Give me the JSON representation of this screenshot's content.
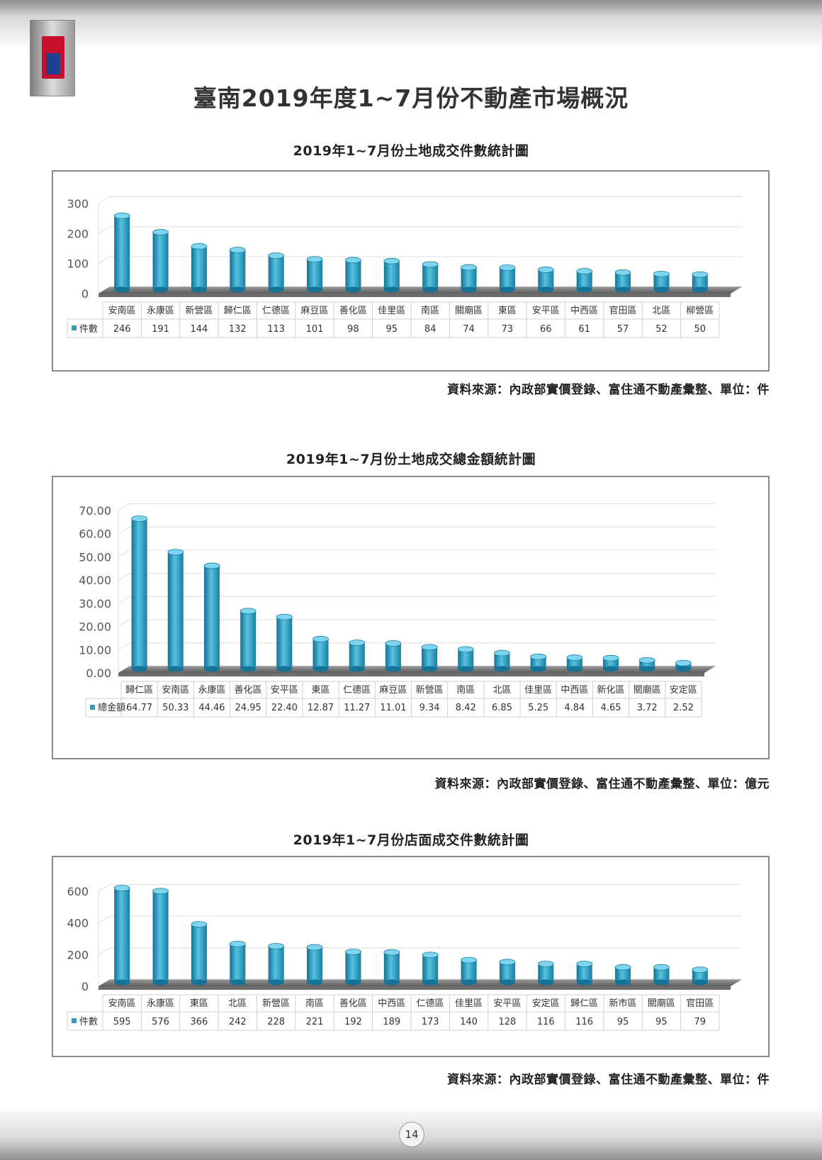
{
  "page": {
    "title": "臺南2019年度1~7月份不動產市場概況",
    "page_number": "14"
  },
  "charts": [
    {
      "title": "2019年1~7月份土地成交件數統計圖",
      "source": "資料來源：內政部實價登錄、富住通不動產彙整、單位：件"
    },
    {
      "title": "2019年1~7月份土地成交總金額統計圖",
      "source": "資料來源：內政部實價登錄、富住通不動產彙整、單位：億元"
    },
    {
      "title": "2019年1~7月份店面成交件數統計圖",
      "source": "資料來源：內政部實價登錄、富住通不動產彙整、單位：件"
    }
  ],
  "chart_data": [
    {
      "type": "bar",
      "title": "2019年1~7月份土地成交件數統計圖",
      "categories": [
        "安南區",
        "永康區",
        "新營區",
        "歸仁區",
        "仁德區",
        "麻豆區",
        "善化區",
        "佳里區",
        "南區",
        "關廟區",
        "東區",
        "安平區",
        "中西區",
        "官田區",
        "北區",
        "柳營區"
      ],
      "series": [
        {
          "name": "件數",
          "values": [
            246,
            191,
            144,
            132,
            113,
            101,
            98,
            95,
            84,
            74,
            73,
            66,
            61,
            57,
            52,
            50
          ]
        }
      ],
      "value_labels": [
        "246",
        "191",
        "144",
        "132",
        "113",
        "101",
        "98",
        "95",
        "84",
        "74",
        "73",
        "66",
        "61",
        "57",
        "52",
        "50"
      ],
      "yticks": [
        "0",
        "100",
        "200",
        "300"
      ],
      "ylim": [
        0,
        300
      ],
      "grid": true,
      "legend": "data-table",
      "bar_color": "#2f9cbf"
    },
    {
      "type": "bar",
      "title": "2019年1~7月份土地成交總金額統計圖",
      "categories": [
        "歸仁區",
        "安南區",
        "永康區",
        "善化區",
        "安平區",
        "東區",
        "仁德區",
        "麻豆區",
        "新營區",
        "南區",
        "北區",
        "佳里區",
        "中西區",
        "新化區",
        "關廟區",
        "安定區"
      ],
      "series": [
        {
          "name": "總金額",
          "values": [
            64.77,
            50.33,
            44.46,
            24.95,
            22.4,
            12.87,
            11.27,
            11.01,
            9.34,
            8.42,
            6.85,
            5.25,
            4.84,
            4.65,
            3.72,
            2.52
          ]
        }
      ],
      "value_labels": [
        "64.77",
        "50.33",
        "44.46",
        "24.95",
        "22.40",
        "12.87",
        "11.27",
        "11.01",
        "9.34",
        "8.42",
        "6.85",
        "5.25",
        "4.84",
        "4.65",
        "3.72",
        "2.52"
      ],
      "yticks": [
        "0.00",
        "10.00",
        "20.00",
        "30.00",
        "40.00",
        "50.00",
        "60.00",
        "70.00"
      ],
      "ylim": [
        0,
        70
      ],
      "grid": true,
      "legend": "data-table",
      "bar_color": "#2f9cbf"
    },
    {
      "type": "bar",
      "title": "2019年1~7月份店面成交件數統計圖",
      "categories": [
        "安南區",
        "永康區",
        "東區",
        "北區",
        "新營區",
        "南區",
        "善化區",
        "中西區",
        "仁德區",
        "佳里區",
        "安平區",
        "安定區",
        "歸仁區",
        "新市區",
        "關廟區",
        "官田區"
      ],
      "series": [
        {
          "name": "件數",
          "values": [
            595,
            576,
            366,
            242,
            228,
            221,
            192,
            189,
            173,
            140,
            128,
            116,
            116,
            95,
            95,
            79
          ]
        }
      ],
      "value_labels": [
        "595",
        "576",
        "366",
        "242",
        "228",
        "221",
        "192",
        "189",
        "173",
        "140",
        "128",
        "116",
        "116",
        "95",
        "95",
        "79"
      ],
      "yticks": [
        "0",
        "200",
        "400",
        "600"
      ],
      "ylim": [
        0,
        600
      ],
      "grid": true,
      "legend": "data-table",
      "bar_color": "#2f9cbf"
    }
  ]
}
